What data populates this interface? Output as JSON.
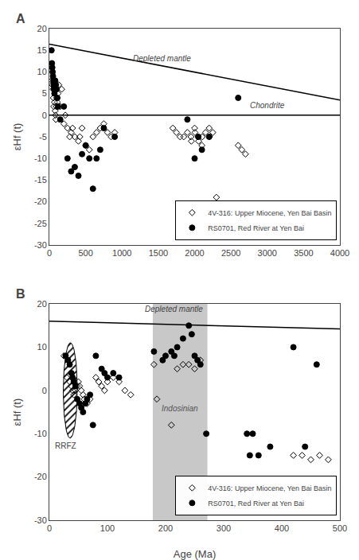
{
  "chart_data": [
    {
      "type": "scatter",
      "title": "A",
      "ylabel": "εHf (t)",
      "xlim": [
        0,
        4000
      ],
      "ylim": [
        -30,
        20
      ],
      "xticks": [
        0,
        500,
        1000,
        1500,
        2000,
        2500,
        3000,
        3500,
        4000
      ],
      "yticks": [
        -30,
        -25,
        -20,
        -15,
        -10,
        -5,
        0,
        5,
        10,
        15,
        20
      ],
      "grid": false,
      "legend": "lower right",
      "lines": [
        {
          "label": "Depleted mantle",
          "color": "#000000",
          "x": [
            0,
            4000
          ],
          "y": [
            16.4,
            3.5
          ],
          "label_x": 1550,
          "label_y": 11.8
        },
        {
          "label": "Chondrite",
          "color": "#000000",
          "x": [
            0,
            4000
          ],
          "y": [
            0,
            0
          ],
          "label_x": 3000,
          "label_y": 0.9
        }
      ],
      "series": [
        {
          "name": "4V-316: Upper Miocene, Yen Bai Basin",
          "color": "#000000",
          "marker": "diamond-open",
          "x": [
            30,
            40,
            50,
            55,
            60,
            70,
            80,
            85,
            90,
            95,
            100,
            110,
            120,
            130,
            150,
            170,
            200,
            220,
            250,
            280,
            300,
            320,
            350,
            400,
            420,
            450,
            500,
            550,
            600,
            650,
            700,
            750,
            800,
            850,
            900,
            1700,
            1750,
            1800,
            1850,
            1900,
            1950,
            1955,
            2000,
            2005,
            2050,
            2055,
            2100,
            2105,
            2150,
            2200,
            2205,
            2250,
            2300,
            2600,
            2650,
            2700
          ],
          "y": [
            8,
            7,
            6,
            4,
            2,
            3,
            1,
            0,
            -1,
            2,
            4,
            3,
            5,
            7,
            2,
            6,
            -2,
            0,
            -3,
            -5,
            -4,
            -3,
            -5,
            -6,
            -5,
            -3,
            -7,
            -8,
            -5,
            -4,
            -3,
            -2,
            -4,
            -5,
            -4,
            -3,
            -4,
            -5,
            -5,
            -4,
            -5,
            -6,
            -3,
            -4,
            -5,
            -6,
            -7,
            -5,
            -4,
            -3,
            -5,
            -4,
            -19,
            -7,
            -8,
            -9
          ]
        },
        {
          "name": "RS0701, Red River at Yen Bai",
          "color": "#000000",
          "marker": "circle",
          "x": [
            30,
            35,
            40,
            45,
            50,
            55,
            60,
            65,
            70,
            80,
            90,
            100,
            110,
            120,
            150,
            200,
            250,
            300,
            350,
            400,
            450,
            500,
            550,
            600,
            650,
            700,
            750,
            900,
            1900,
            2000,
            2050,
            2100,
            2200,
            2600
          ],
          "y": [
            15,
            12,
            11,
            10,
            9,
            8,
            7,
            6,
            5,
            8,
            7,
            6,
            4,
            2,
            -1,
            2,
            -10,
            -13,
            -12,
            -14,
            -9,
            -7,
            -10,
            -17,
            -10,
            -8,
            -3,
            -5,
            -1,
            -10,
            -5,
            -8,
            -5,
            4
          ]
        }
      ]
    },
    {
      "type": "scatter",
      "title": "B",
      "xlabel": "Age (Ma)",
      "ylabel": "εHf (t)",
      "xlim": [
        0,
        500
      ],
      "ylim": [
        -30,
        20
      ],
      "xticks": [
        0,
        100,
        200,
        300,
        400,
        500
      ],
      "yticks": [
        -30,
        -20,
        -10,
        0,
        10,
        20
      ],
      "grid": false,
      "legend": "lower right",
      "bands": [
        {
          "label": "Indosinian",
          "color": "#c8c8c8",
          "xmin": 178,
          "xmax": 272,
          "label_x": 225,
          "label_y": -5.5
        }
      ],
      "regions": [
        {
          "label": "RRFZ",
          "x": 36,
          "y": 0,
          "width": 24,
          "height": 22,
          "angle": 8,
          "label_x": 28,
          "label_y": -11.5
        }
      ],
      "lines": [
        {
          "label": "Depleted mantle",
          "color": "#000000",
          "x": [
            0,
            500
          ],
          "y": [
            16.0,
            14.2
          ],
          "label_x": 215,
          "label_y": 17.5
        }
      ],
      "series": [
        {
          "name": "4V-316: Upper Miocene, Yen Bai Basin",
          "color": "#000000",
          "marker": "diamond-open",
          "x": [
            25,
            30,
            35,
            38,
            40,
            42,
            45,
            48,
            50,
            52,
            55,
            58,
            60,
            65,
            70,
            80,
            85,
            90,
            95,
            100,
            110,
            120,
            130,
            140,
            180,
            185,
            210,
            220,
            230,
            240,
            250,
            260,
            420,
            435,
            450,
            465,
            480
          ],
          "y": [
            8,
            3,
            2,
            1,
            0,
            -1,
            0,
            1,
            2,
            1,
            0,
            -1,
            -2,
            -3,
            -2,
            3,
            2,
            1,
            0,
            2,
            3,
            2,
            0,
            -1,
            6,
            -2,
            -8,
            5,
            6,
            6,
            5,
            7,
            -15,
            -15,
            -16,
            -15,
            -16
          ]
        },
        {
          "name": "RS0701, Red River at Yen Bai",
          "color": "#000000",
          "marker": "circle",
          "x": [
            28,
            32,
            35,
            38,
            40,
            42,
            45,
            48,
            52,
            55,
            58,
            62,
            65,
            70,
            75,
            80,
            90,
            95,
            100,
            110,
            120,
            180,
            195,
            200,
            210,
            215,
            220,
            230,
            240,
            245,
            250,
            255,
            260,
            270,
            340,
            345,
            350,
            360,
            380,
            420,
            440,
            460
          ],
          "y": [
            8,
            7,
            6,
            4,
            3,
            2,
            1,
            -2,
            -3,
            -4,
            -5,
            -3,
            -2,
            -1,
            -8,
            8,
            5,
            4,
            3,
            4,
            3,
            9,
            7,
            8,
            9,
            8,
            10,
            12,
            15,
            13,
            8,
            7,
            6,
            -10,
            -10,
            -15,
            -10,
            -15,
            -13,
            10,
            -13,
            6
          ]
        }
      ]
    }
  ]
}
